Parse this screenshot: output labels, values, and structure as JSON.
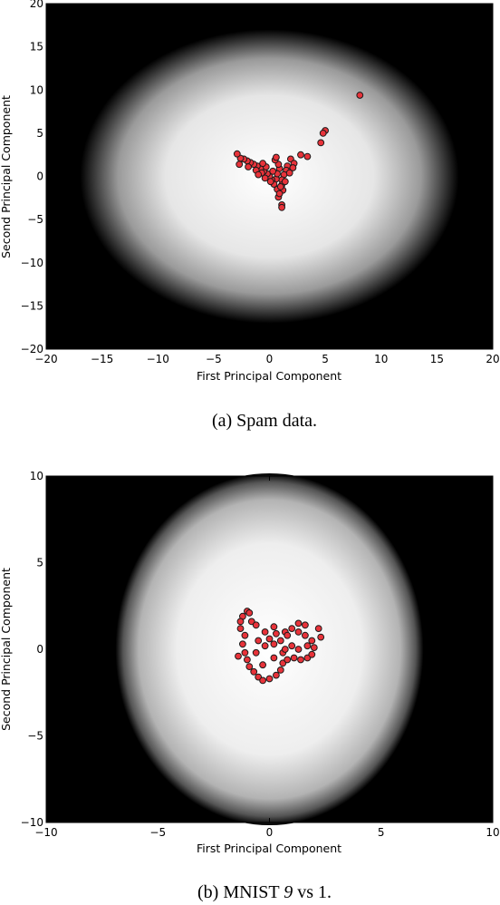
{
  "figure": {
    "background_color": "#ffffff",
    "heat_colors": {
      "center": "#ffffff",
      "edge": "#000000"
    },
    "point_colors": {
      "fill": "#e8333a",
      "edge": "#1a1a1a"
    }
  },
  "chart_data": [
    {
      "type": "scatter",
      "title": "",
      "caption": "(a) Spam data.",
      "xlabel": "First Principal Component",
      "ylabel": "Second Principal Component",
      "xlim": [
        -20,
        20
      ],
      "ylim": [
        -20,
        20
      ],
      "xticks": [
        -20,
        -15,
        -10,
        -5,
        0,
        5,
        10,
        15,
        20
      ],
      "yticks": [
        -20,
        -15,
        -10,
        -5,
        0,
        5,
        10,
        15,
        20
      ],
      "xtick_labels": [
        "−20",
        "−15",
        "−10",
        "−5",
        "0",
        "5",
        "10",
        "15",
        "20"
      ],
      "ytick_labels": [
        "−20",
        "−15",
        "−10",
        "−5",
        "0",
        "5",
        "10",
        "15",
        "20"
      ],
      "grid": false,
      "background": {
        "type": "radial-density",
        "center": [
          0,
          0
        ],
        "radius": [
          17,
          17
        ]
      },
      "points": [
        [
          8.1,
          9.4
        ],
        [
          5.0,
          5.3
        ],
        [
          4.8,
          5.0
        ],
        [
          4.6,
          3.9
        ],
        [
          3.4,
          2.3
        ],
        [
          2.8,
          2.5
        ],
        [
          1.9,
          2.0
        ],
        [
          2.2,
          1.5
        ],
        [
          1.6,
          1.2
        ],
        [
          1.5,
          0.7
        ],
        [
          1.3,
          0.2
        ],
        [
          1.1,
          -0.4
        ],
        [
          1.1,
          -1.0
        ],
        [
          1.2,
          -1.6
        ],
        [
          1.1,
          -3.3
        ],
        [
          1.1,
          -3.6
        ],
        [
          0.8,
          -2.4
        ],
        [
          0.7,
          -1.5
        ],
        [
          0.6,
          -0.3
        ],
        [
          0.4,
          -0.9
        ],
        [
          0.9,
          0.9
        ],
        [
          0.7,
          0.3
        ],
        [
          0.2,
          -0.4
        ],
        [
          0.0,
          0.0
        ],
        [
          -0.2,
          0.3
        ],
        [
          -0.5,
          0.6
        ],
        [
          -0.8,
          0.9
        ],
        [
          -1.1,
          1.2
        ],
        [
          -1.4,
          1.4
        ],
        [
          -1.7,
          1.6
        ],
        [
          -2.0,
          1.8
        ],
        [
          -2.3,
          2.0
        ],
        [
          -2.6,
          2.1
        ],
        [
          -2.9,
          2.6
        ],
        [
          -2.7,
          1.4
        ],
        [
          -1.9,
          1.1
        ],
        [
          -1.2,
          0.7
        ],
        [
          -0.7,
          0.4
        ],
        [
          -0.4,
          -0.2
        ],
        [
          0.1,
          -0.6
        ],
        [
          0.3,
          0.6
        ],
        [
          0.8,
          1.4
        ],
        [
          -0.3,
          1.1
        ],
        [
          -1.0,
          0.2
        ],
        [
          0.5,
          1.9
        ],
        [
          1.8,
          0.4
        ],
        [
          2.1,
          1.0
        ],
        [
          1.4,
          -0.6
        ],
        [
          0.9,
          -2.0
        ],
        [
          -0.6,
          1.5
        ],
        [
          0.6,
          2.2
        ],
        [
          1.0,
          -1.2
        ]
      ]
    },
    {
      "type": "scatter",
      "title": "",
      "caption_prefix": "(b) MNIST ",
      "caption_math": "9",
      "caption_suffix": " vs ",
      "caption_math2": "1",
      "caption_end": ".",
      "xlabel": "First Principal Component",
      "ylabel": "Second Principal Component",
      "xlim": [
        -10,
        10
      ],
      "ylim": [
        -10,
        10
      ],
      "xticks": [
        -10,
        -5,
        0,
        5,
        10
      ],
      "yticks": [
        -10,
        -5,
        0,
        5,
        10
      ],
      "xtick_labels": [
        "−10",
        "−5",
        "0",
        "5",
        "10"
      ],
      "ytick_labels": [
        "−10",
        "−5",
        "0",
        "5",
        "10"
      ],
      "grid": false,
      "background": {
        "type": "radial-density",
        "center": [
          0,
          0
        ],
        "radius": [
          7.3,
          10.1
        ]
      },
      "points": [
        [
          -1.2,
          1.9
        ],
        [
          -1.0,
          2.2
        ],
        [
          -0.8,
          1.6
        ],
        [
          -1.3,
          1.2
        ],
        [
          -1.1,
          0.8
        ],
        [
          -1.2,
          0.3
        ],
        [
          -1.1,
          -0.2
        ],
        [
          -1.0,
          -0.6
        ],
        [
          -0.9,
          -1.0
        ],
        [
          -0.7,
          -1.3
        ],
        [
          -0.5,
          -1.6
        ],
        [
          -0.3,
          -1.8
        ],
        [
          0.0,
          -1.7
        ],
        [
          0.3,
          -1.5
        ],
        [
          0.5,
          -1.2
        ],
        [
          0.6,
          -0.8
        ],
        [
          0.8,
          -0.6
        ],
        [
          1.1,
          -0.5
        ],
        [
          1.4,
          -0.6
        ],
        [
          1.7,
          -0.5
        ],
        [
          1.9,
          -0.3
        ],
        [
          2.0,
          0.1
        ],
        [
          1.9,
          0.5
        ],
        [
          1.6,
          0.8
        ],
        [
          1.3,
          1.0
        ],
        [
          1.0,
          1.2
        ],
        [
          0.7,
          1.0
        ],
        [
          0.3,
          0.9
        ],
        [
          0.0,
          0.6
        ],
        [
          -0.2,
          0.2
        ],
        [
          0.2,
          0.3
        ],
        [
          0.5,
          0.5
        ],
        [
          1.3,
          1.5
        ],
        [
          1.6,
          1.4
        ],
        [
          2.2,
          1.2
        ],
        [
          2.3,
          0.7
        ],
        [
          1.0,
          0.2
        ],
        [
          1.3,
          0.0
        ],
        [
          0.6,
          -0.2
        ],
        [
          0.2,
          -0.5
        ],
        [
          -0.3,
          -0.9
        ],
        [
          -0.6,
          -0.2
        ],
        [
          -0.5,
          0.5
        ],
        [
          -0.6,
          1.4
        ],
        [
          -0.2,
          1.0
        ],
        [
          0.2,
          1.3
        ],
        [
          0.8,
          0.8
        ],
        [
          1.7,
          0.2
        ],
        [
          -1.4,
          -0.4
        ],
        [
          -1.3,
          1.6
        ],
        [
          -0.9,
          2.1
        ],
        [
          0.7,
          0.0
        ]
      ]
    }
  ]
}
